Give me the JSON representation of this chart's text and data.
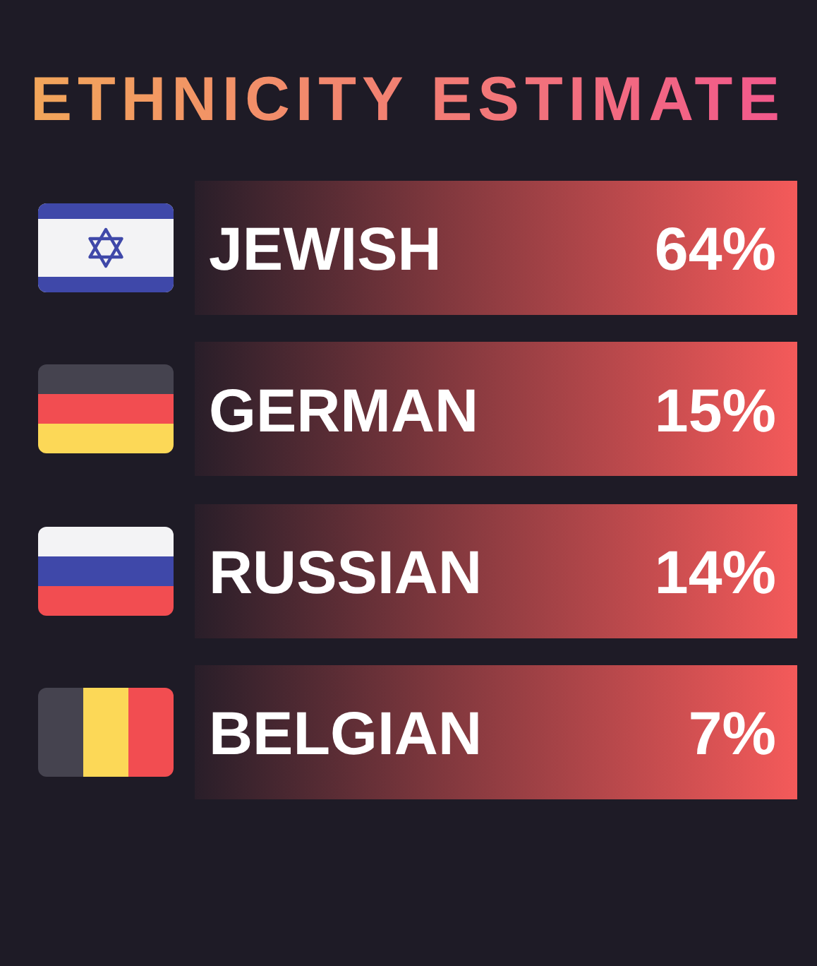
{
  "chart_data": {
    "type": "other",
    "title": "ETHNICITY ESTIMATE",
    "categories": [
      "JEWISH",
      "GERMAN",
      "RUSSIAN",
      "BELGIAN"
    ],
    "values": [
      64,
      15,
      14,
      7
    ],
    "value_labels": [
      "64%",
      "15%",
      "14%",
      "7%"
    ],
    "color": "#f45a5a"
  }
}
